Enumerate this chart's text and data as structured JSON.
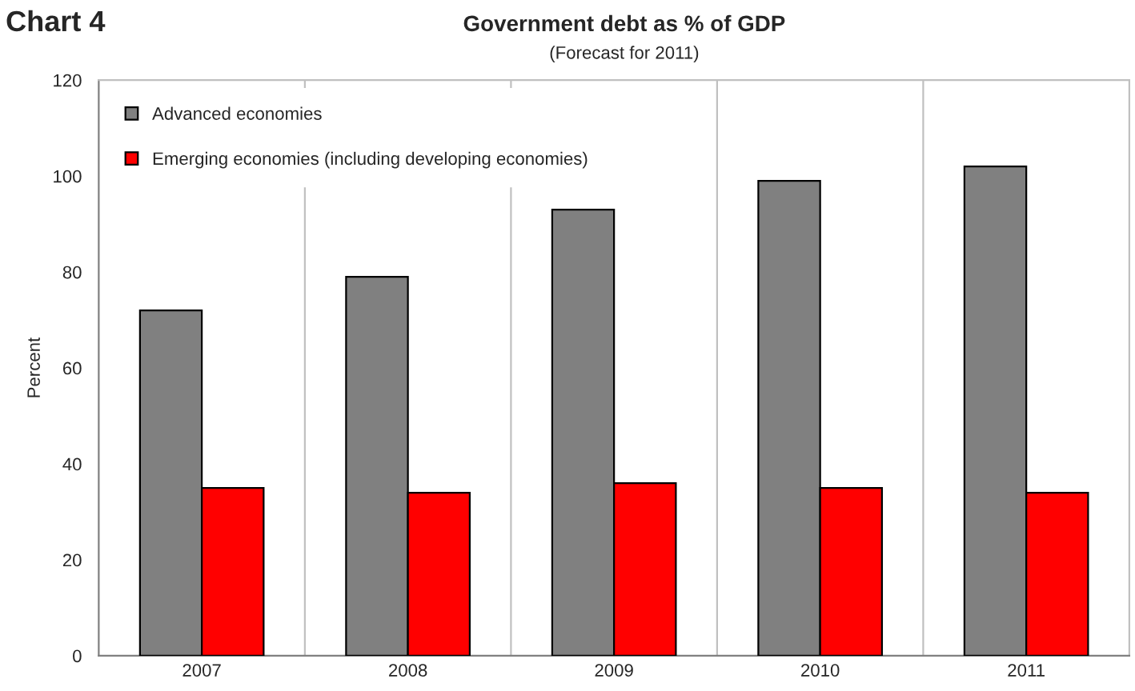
{
  "chart_data": {
    "type": "bar",
    "title": "Government debt as % of GDP",
    "subtitle": "(Forecast for 2011)",
    "ylabel": "Percent",
    "annotations": [
      "Chart 4"
    ],
    "categories": [
      "2007",
      "2008",
      "2009",
      "2010",
      "2011"
    ],
    "series": [
      {
        "name": "Advanced economies",
        "color": "#808080",
        "values": [
          72,
          79,
          93,
          99,
          102
        ]
      },
      {
        "name": "Emerging economies (including developing economies)",
        "color": "#ff0000",
        "values": [
          35,
          34,
          36,
          35,
          34
        ]
      }
    ],
    "ylim": [
      0,
      120
    ],
    "yticks": [
      0,
      20,
      40,
      60,
      80,
      100,
      120
    ],
    "grid": "x",
    "legend": "top left"
  }
}
